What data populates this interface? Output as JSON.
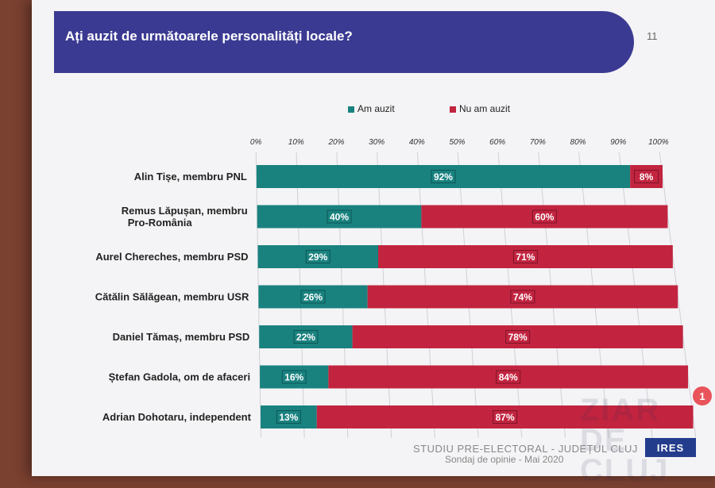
{
  "header": {
    "title": "Ați auzit de următoarele personalități locale?",
    "page_number": "11"
  },
  "footer": {
    "line1": "STUDIU PRE-ELECTORAL - JUDEȚUL CLUJ",
    "line2": "Sondaj  de opinie - Mai 2020",
    "brand": "IRES",
    "badge": "1",
    "watermark": "ZIAR DE CLUJ"
  },
  "colors": {
    "banner": "#3b3a92",
    "heard": "#19827f",
    "not_heard": "#c2243f"
  },
  "chart_data": {
    "type": "bar",
    "orientation": "horizontal",
    "stacked": true,
    "categories": [
      "Alin Tișe, membru PNL",
      "Remus Lăpușan, membru Pro-România",
      "Aurel Chereches, membru PSD",
      "Cătălin Sălăgean, membru USR",
      "Daniel Tămaș, membru PSD",
      "Ștefan Gadola, om de afaceri",
      "Adrian Dohotaru, independent"
    ],
    "series": [
      {
        "name": "Am auzit",
        "values": [
          92,
          40,
          29,
          26,
          22,
          16,
          13
        ]
      },
      {
        "name": "Nu am auzit",
        "values": [
          8,
          60,
          71,
          74,
          78,
          84,
          87
        ]
      }
    ],
    "x_ticks": [
      "0%",
      "10%",
      "20%",
      "30%",
      "40%",
      "50%",
      "60%",
      "70%",
      "80%",
      "90%",
      "100%"
    ],
    "xlim": [
      0,
      100
    ],
    "legend_position": "top",
    "grid": true
  }
}
